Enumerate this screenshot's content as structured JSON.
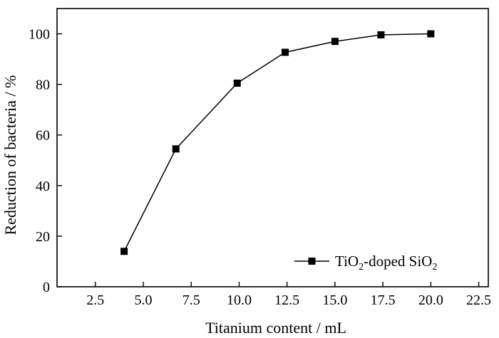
{
  "chart_data": {
    "type": "line",
    "xlabel": "Titanium content / mL",
    "ylabel": "Reduction of bacteria / %",
    "xlim": [
      0.5,
      23.0
    ],
    "ylim": [
      0,
      110
    ],
    "xticks": [
      2.5,
      5.0,
      7.5,
      10.0,
      12.5,
      15.0,
      17.5,
      20.0,
      22.5
    ],
    "xtick_labels": [
      "2.5",
      "5.0",
      "7.5",
      "10.0",
      "12.5",
      "15.0",
      "17.5",
      "20.0",
      "22.5"
    ],
    "yticks": [
      0,
      20,
      40,
      60,
      80,
      100
    ],
    "ytick_labels": [
      "0",
      "20",
      "40",
      "60",
      "80",
      "100"
    ],
    "grid": false,
    "legend_position": "bottom-right",
    "series": [
      {
        "name_parts": [
          "TiO",
          "2",
          "-doped SiO",
          "2"
        ],
        "marker": "square",
        "color": "#000000",
        "x": [
          4.0,
          6.7,
          9.9,
          12.4,
          15.0,
          17.4,
          20.0
        ],
        "y": [
          14,
          54.5,
          80.5,
          92.7,
          97,
          99.6,
          100
        ]
      }
    ]
  }
}
